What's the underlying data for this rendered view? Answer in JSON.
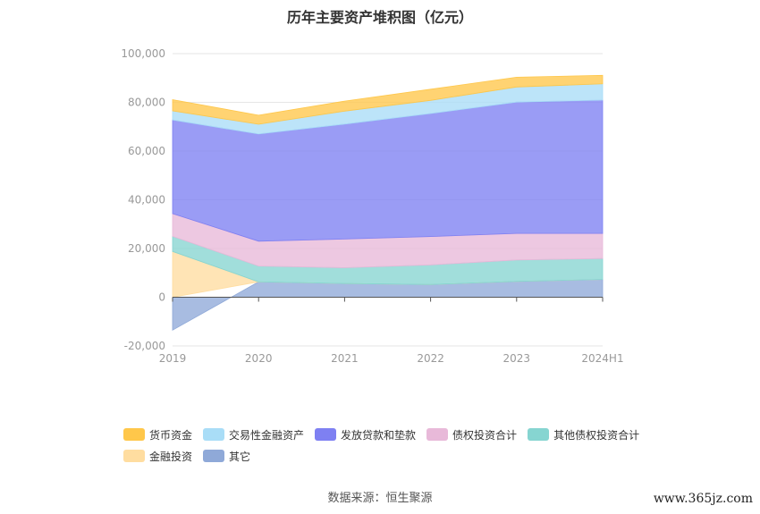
{
  "chart_data": {
    "type": "area",
    "stacked": true,
    "title": "历年主要资产堆积图（亿元）",
    "categories": [
      "2019",
      "2020",
      "2021",
      "2022",
      "2023",
      "2024H1"
    ],
    "ylim": [
      -20000,
      100000
    ],
    "yticks": [
      "-20,000",
      "0",
      "20,000",
      "40,000",
      "60,000",
      "80,000",
      "100,000"
    ],
    "grid": true,
    "legend_position": "bottom",
    "series": [
      {
        "name": "其它",
        "color": "#8fa9d8",
        "values": [
          -13500,
          6300,
          5600,
          5200,
          6500,
          7300
        ]
      },
      {
        "name": "金融投资",
        "color": "#ffdda0",
        "values": [
          18800,
          0,
          0,
          0,
          0,
          0
        ]
      },
      {
        "name": "其他债权投资合计",
        "color": "#86d5d1",
        "values": [
          6200,
          6500,
          6500,
          8100,
          8800,
          8600
        ]
      },
      {
        "name": "债权投资合计",
        "color": "#e8b9d9",
        "values": [
          9300,
          10200,
          11800,
          11600,
          10900,
          10300
        ]
      },
      {
        "name": "发放贷款和垫款",
        "color": "#7e80f2",
        "values": [
          38500,
          44000,
          47200,
          50500,
          53900,
          54700
        ]
      },
      {
        "name": "交易性金融资产",
        "color": "#a9ddf7",
        "values": [
          3700,
          4000,
          5300,
          5400,
          6200,
          6700
        ]
      },
      {
        "name": "货币资金",
        "color": "#ffc74a",
        "values": [
          4600,
          3700,
          4100,
          4600,
          4000,
          3500
        ]
      }
    ]
  },
  "legend_rows": [
    [
      "货币资金",
      "交易性金融资产",
      "发放贷款和垫款",
      "债权投资合计",
      "其他债权投资合计"
    ],
    [
      "金融投资",
      "其它"
    ]
  ],
  "source_text": "数据来源：恒生聚源",
  "watermark_text": "www.365jz.com"
}
